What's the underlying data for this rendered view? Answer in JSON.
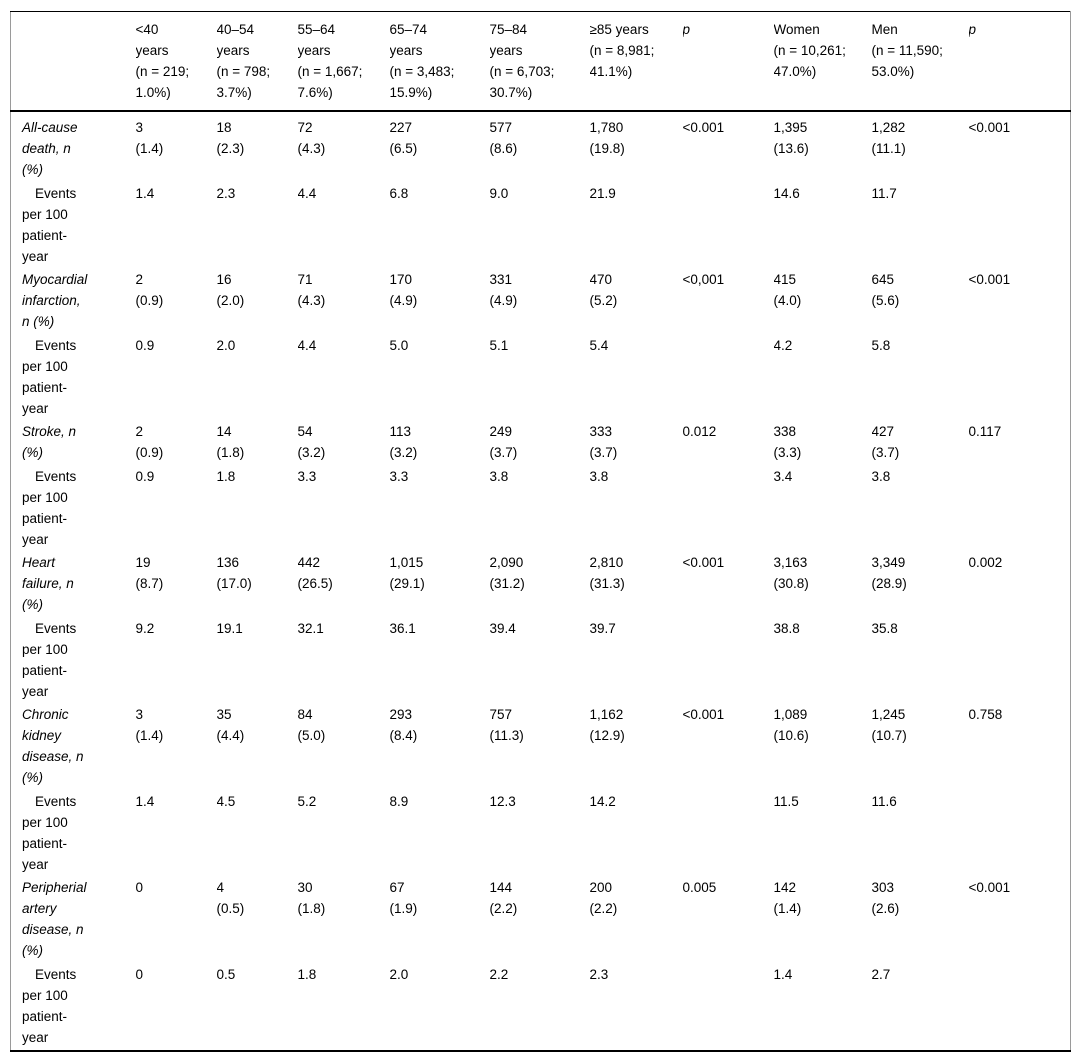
{
  "colors": {
    "background": "#ffffff",
    "text": "#000000",
    "horizontal_rule": "#000000",
    "side_border": "#9a9a9a"
  },
  "table": {
    "header": {
      "columns": [
        {
          "label": "",
          "italic": false
        },
        {
          "label": "<40\nyears\n(n = 219;\n1.0%)",
          "italic": false
        },
        {
          "label": "40–54\nyears\n(n = 798;\n3.7%)",
          "italic": false
        },
        {
          "label": "55–64\nyears\n(n = 1,667;\n7.6%)",
          "italic": false
        },
        {
          "label": "65–74\nyears\n(n = 3,483;\n15.9%)",
          "italic": false
        },
        {
          "label": "75–84\nyears\n(n = 6,703;\n30.7%)",
          "italic": false
        },
        {
          "label": "≥85 years\n(n = 8,981;\n41.1%)",
          "italic": false
        },
        {
          "label": "p",
          "italic": true
        },
        {
          "label": "Women\n(n = 10,261;\n47.0%)",
          "italic": false
        },
        {
          "label": "Men\n(n = 11,590;\n53.0%)",
          "italic": false
        },
        {
          "label": "p",
          "italic": true
        }
      ]
    },
    "rows": [
      {
        "type": "outcome",
        "label": "All-cause\ndeath, n\n(%)",
        "values": [
          "3\n(1.4)",
          "18\n(2.3)",
          "72\n(4.3)",
          "227\n(6.5)",
          "577\n(8.6)",
          "1,780\n(19.8)",
          "<0.001",
          "1,395\n(13.6)",
          "1,282\n(11.1)",
          "<0.001"
        ]
      },
      {
        "type": "events",
        "label": "Events\nper 100\npatient-\nyear",
        "values": [
          "1.4",
          "2.3",
          "4.4",
          "6.8",
          "9.0",
          "21.9",
          "",
          "14.6",
          "11.7",
          ""
        ]
      },
      {
        "type": "outcome",
        "label": "Myocardial\ninfarction,\nn (%)",
        "values": [
          "2\n(0.9)",
          "16\n(2.0)",
          "71\n(4.3)",
          "170\n(4.9)",
          "331\n(4.9)",
          "470\n(5.2)",
          "<0,001",
          "415\n(4.0)",
          "645\n(5.6)",
          "<0.001"
        ]
      },
      {
        "type": "events",
        "label": "Events\nper 100\npatient-\nyear",
        "values": [
          "0.9",
          "2.0",
          "4.4",
          "5.0",
          "5.1",
          "5.4",
          "",
          "4.2",
          "5.8",
          ""
        ]
      },
      {
        "type": "outcome",
        "label": "Stroke, n\n(%)",
        "values": [
          "2\n(0.9)",
          "14\n(1.8)",
          "54\n(3.2)",
          "113\n(3.2)",
          "249\n(3.7)",
          "333\n(3.7)",
          "0.012",
          "338\n(3.3)",
          "427\n(3.7)",
          "0.117"
        ]
      },
      {
        "type": "events",
        "label": "Events\nper 100\npatient-\nyear",
        "values": [
          "0.9",
          "1.8",
          "3.3",
          "3.3",
          "3.8",
          "3.8",
          "",
          "3.4",
          "3.8",
          ""
        ]
      },
      {
        "type": "outcome",
        "label": "Heart\nfailure, n\n(%)",
        "values": [
          "19\n(8.7)",
          "136\n(17.0)",
          "442\n(26.5)",
          "1,015\n(29.1)",
          "2,090\n(31.2)",
          "2,810\n(31.3)",
          "<0.001",
          "3,163\n(30.8)",
          "3,349\n(28.9)",
          "0.002"
        ]
      },
      {
        "type": "events",
        "label": "Events\nper 100\npatient-\nyear",
        "values": [
          "9.2",
          "19.1",
          "32.1",
          "36.1",
          "39.4",
          "39.7",
          "",
          "38.8",
          "35.8",
          ""
        ]
      },
      {
        "type": "outcome",
        "label": "Chronic\nkidney\ndisease, n\n(%)",
        "values": [
          "3\n(1.4)",
          "35\n(4.4)",
          "84\n(5.0)",
          "293\n(8.4)",
          "757\n(11.3)",
          "1,162\n(12.9)",
          "<0.001",
          "1,089\n(10.6)",
          "1,245\n(10.7)",
          "0.758"
        ]
      },
      {
        "type": "events",
        "label": "Events\nper 100\npatient-\nyear",
        "values": [
          "1.4",
          "4.5",
          "5.2",
          "8.9",
          "12.3",
          "14.2",
          "",
          "11.5",
          "11.6",
          ""
        ]
      },
      {
        "type": "outcome",
        "label": "Peripherial\nartery\ndisease, n\n(%)",
        "values": [
          "0",
          "4\n(0.5)",
          "30\n(1.8)",
          "67\n(1.9)",
          "144\n(2.2)",
          "200\n(2.2)",
          "0.005",
          "142\n(1.4)",
          "303\n(2.6)",
          "<0.001"
        ]
      },
      {
        "type": "events",
        "label": "Events\nper 100\npatient-\nyear",
        "values": [
          "0",
          "0.5",
          "1.8",
          "2.0",
          "2.2",
          "2.3",
          "",
          "1.4",
          "2.7",
          ""
        ]
      }
    ]
  }
}
